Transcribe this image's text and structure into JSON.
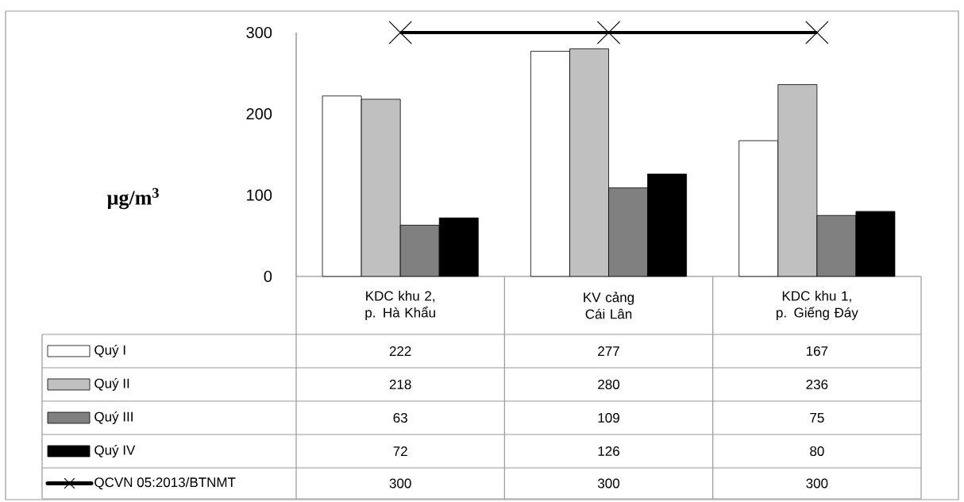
{
  "chart_data": {
    "type": "bar",
    "ylabel": "µg/m$^{3}$",
    "categories": [
      "KDC khu 2, p. Hà Khẩu",
      "KV cảng Cái Lân",
      "KDC khu 1, p. Giếng Đáy"
    ],
    "series": [
      {
        "name": "Quý I",
        "color": "#ffffff",
        "values": [
          222,
          277,
          167
        ]
      },
      {
        "name": "Quý II",
        "color": "#c0c0c0",
        "values": [
          218,
          280,
          236
        ]
      },
      {
        "name": "Quý III",
        "color": "#808080",
        "values": [
          63,
          109,
          75
        ]
      },
      {
        "name": "Quý IV",
        "color": "#000000",
        "values": [
          72,
          126,
          80
        ]
      },
      {
        "name": "QCVN 05:2013/BTNMT",
        "type": "line",
        "color": "#000000",
        "marker": "cross",
        "values": [
          300,
          300,
          300
        ]
      }
    ],
    "ylim": [
      0,
      300
    ],
    "yticks": [
      0,
      100,
      200,
      300
    ],
    "legend": "bottom",
    "data_labels": true
  }
}
